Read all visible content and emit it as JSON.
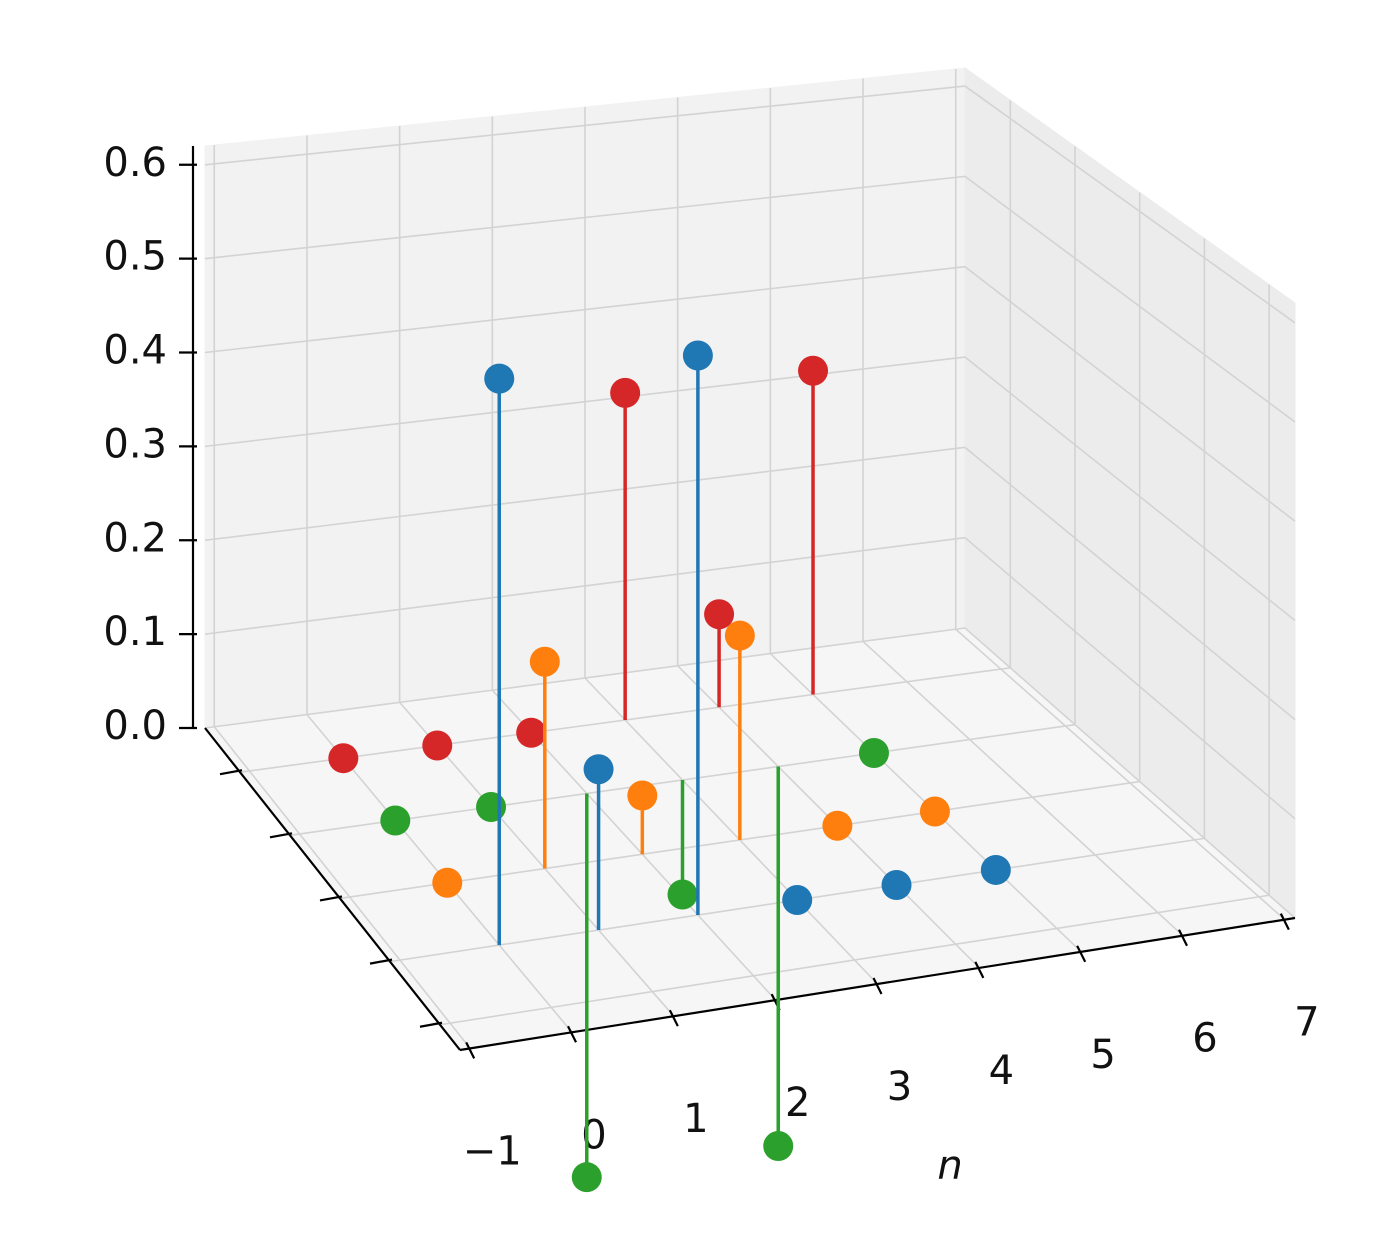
{
  "chart_data": {
    "type": "stem3d",
    "x": [
      0,
      1,
      2,
      3,
      4,
      5
    ],
    "xlabel": "n",
    "xlim": [
      -1.1,
      7.1
    ],
    "xticks": [
      {
        "value": -1,
        "label": "−1"
      },
      0,
      1,
      2,
      3,
      4,
      5,
      6,
      7
    ],
    "ylim": [
      -1.4,
      3.7
    ],
    "yticks": [
      -1,
      0,
      1,
      2,
      3
    ],
    "zlim": [
      0,
      0.62
    ],
    "zticks": [
      {
        "value": 0,
        "label": "0.0"
      },
      0.1,
      0.2,
      0.3,
      0.4,
      0.5,
      0.6
    ],
    "grid": true,
    "series": [
      {
        "y": 0,
        "color": "#1f77b4",
        "values": [
          0.56,
          0.16,
          0.56,
          0,
          0,
          0
        ]
      },
      {
        "y": 1,
        "color": "#ff7f0e",
        "values": [
          0,
          0.21,
          0.06,
          0.21,
          0,
          0
        ]
      },
      {
        "y": 2,
        "color": "#2ca02c",
        "values": [
          0,
          0,
          -0.4,
          -0.12,
          -0.4,
          0
        ]
      },
      {
        "y": 3,
        "color": "#d62728",
        "values": [
          0,
          0,
          0,
          0.35,
          0.1,
          0.35
        ]
      }
    ]
  }
}
